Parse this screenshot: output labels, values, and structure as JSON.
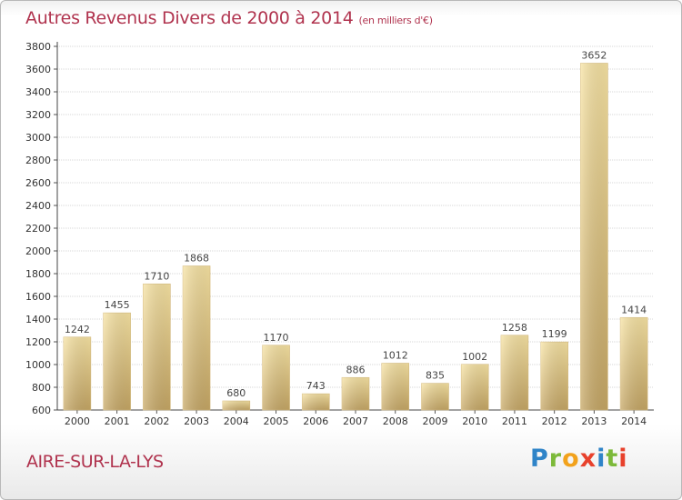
{
  "header": {
    "title": "Autres Revenus Divers de 2000 à 2014",
    "subtitle": "(en milliers d'€)"
  },
  "footer": {
    "place": "AIRE-SUR-LA-LYS",
    "logo": {
      "p": "P",
      "r": "r",
      "o": "o",
      "x": "x",
      "i1": "i",
      "t": "t",
      "i2": "i"
    }
  },
  "colors": {
    "bar_light": "#f7e3a3",
    "bar_dark": "#c6a765",
    "text": "#b0334e",
    "grid": "#d7d7d7"
  },
  "chart_data": {
    "type": "bar",
    "categories": [
      "2000",
      "2001",
      "2002",
      "2003",
      "2004",
      "2005",
      "2006",
      "2007",
      "2008",
      "2009",
      "2010",
      "2011",
      "2012",
      "2013",
      "2014"
    ],
    "values": [
      1242,
      1455,
      1710,
      1868,
      680,
      1170,
      743,
      886,
      1012,
      835,
      1002,
      1258,
      1199,
      3652,
      1414
    ],
    "yticks": [
      600,
      800,
      1000,
      1200,
      1400,
      1600,
      1800,
      2000,
      2200,
      2400,
      2600,
      2800,
      3000,
      3200,
      3400,
      3600,
      3800
    ],
    "ylim": [
      600,
      3800
    ],
    "title": "Autres Revenus Divers de 2000 à 2014",
    "grid": true
  }
}
